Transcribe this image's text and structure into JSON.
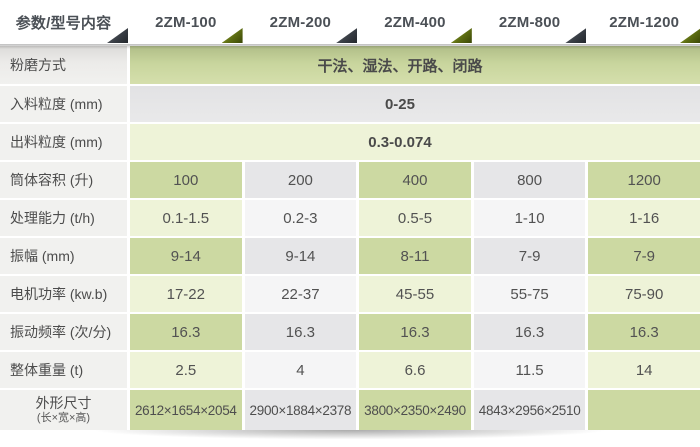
{
  "table": {
    "header": {
      "label": "参数/型号内容",
      "models": [
        "2ZM-100",
        "2ZM-200",
        "2ZM-400",
        "2ZM-800",
        "2ZM-1200"
      ]
    },
    "span_rows": [
      {
        "label": "粉磨方式",
        "value": "干法、湿法、开路、闭路"
      },
      {
        "label": "入料粒度 (mm)",
        "value": "0-25"
      },
      {
        "label": "出料粒度 (mm)",
        "value": "0.3-0.074"
      }
    ],
    "rows": [
      {
        "label": "筒体容积 (升)",
        "values": [
          "100",
          "200",
          "400",
          "800",
          "1200"
        ]
      },
      {
        "label": "处理能力 (t/h)",
        "values": [
          "0.1-1.5",
          "0.2-3",
          "0.5-5",
          "1-10",
          "1-16"
        ]
      },
      {
        "label": "振幅 (mm)",
        "values": [
          "9-14",
          "9-14",
          "8-11",
          "7-9",
          "7-9"
        ]
      },
      {
        "label": "电机功率 (kw.b)",
        "values": [
          "17-22",
          "22-37",
          "45-55",
          "55-75",
          "75-90"
        ]
      },
      {
        "label": "振动频率 (次/分)",
        "values": [
          "16.3",
          "16.3",
          "16.3",
          "16.3",
          "16.3"
        ]
      },
      {
        "label": "整体重量 (t)",
        "values": [
          "2.5",
          "4",
          "6.6",
          "11.5",
          "14"
        ]
      },
      {
        "label": "外形尺寸",
        "label_sub": "(长×宽×高)",
        "values": [
          "2612×1654×2054",
          "2900×1884×2378",
          "3800×2350×2490",
          "4843×2956×2510",
          ""
        ]
      }
    ],
    "colors": {
      "green_dark": "#ccd9a2",
      "green_light": "#eef3d8",
      "gray_dark": "#e6e6e8",
      "gray_light": "#f5f5f6",
      "triangle_olive": "#5d6d12",
      "triangle_dark": "#3a3f46",
      "header_text": "#4b5056"
    }
  }
}
